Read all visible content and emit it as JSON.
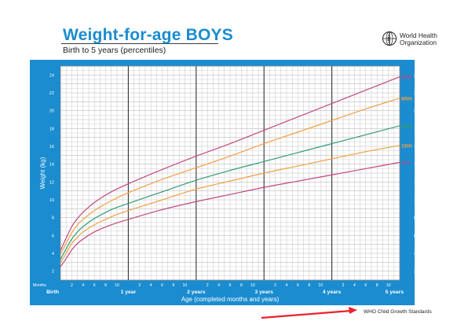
{
  "header": {
    "title": "Weight-for-age BOYS",
    "subtitle": "Birth to 5 years (percentiles)",
    "org_line1": "World Health",
    "org_line2": "Organization",
    "footer_note": "WHO Child Growth Standards"
  },
  "colors": {
    "frame": "#1a8ccf",
    "plot_bg": "#ffffff",
    "grid": "#bdbdbd",
    "year_line": "#333333",
    "p97": "#c1497e",
    "p85": "#f0a043",
    "p50": "#2f9e72",
    "p15": "#f0a043",
    "p3": "#c1497e",
    "arrow": "#e8232d"
  },
  "chart_data": {
    "type": "line",
    "title": "Weight-for-age BOYS",
    "subtitle": "Birth to 5 years (percentiles)",
    "xlabel": "Age (completed months and years)",
    "ylabel": "Weight (kg)",
    "xlim": [
      0,
      60
    ],
    "ylim": [
      1,
      25
    ],
    "y_ticks": [
      2,
      4,
      6,
      8,
      10,
      12,
      14,
      16,
      18,
      20,
      22,
      24
    ],
    "months_label": "Months",
    "x_month_ticks": [
      {
        "x": 2,
        "label": "2"
      },
      {
        "x": 4,
        "label": "4"
      },
      {
        "x": 6,
        "label": "6"
      },
      {
        "x": 8,
        "label": "8"
      },
      {
        "x": 10,
        "label": "10"
      },
      {
        "x": 14,
        "label": "2"
      },
      {
        "x": 16,
        "label": "4"
      },
      {
        "x": 18,
        "label": "6"
      },
      {
        "x": 20,
        "label": "8"
      },
      {
        "x": 22,
        "label": "10"
      },
      {
        "x": 26,
        "label": "2"
      },
      {
        "x": 28,
        "label": "4"
      },
      {
        "x": 30,
        "label": "6"
      },
      {
        "x": 32,
        "label": "8"
      },
      {
        "x": 34,
        "label": "10"
      },
      {
        "x": 38,
        "label": "2"
      },
      {
        "x": 40,
        "label": "4"
      },
      {
        "x": 42,
        "label": "6"
      },
      {
        "x": 44,
        "label": "8"
      },
      {
        "x": 46,
        "label": "10"
      },
      {
        "x": 50,
        "label": "2"
      },
      {
        "x": 52,
        "label": "4"
      },
      {
        "x": 54,
        "label": "6"
      },
      {
        "x": 56,
        "label": "8"
      },
      {
        "x": 58,
        "label": "10"
      }
    ],
    "x_year_ticks": [
      {
        "x": 0,
        "label": "Birth"
      },
      {
        "x": 12,
        "label": "1 year"
      },
      {
        "x": 24,
        "label": "2 years"
      },
      {
        "x": 36,
        "label": "3 years"
      },
      {
        "x": 48,
        "label": "4 years"
      },
      {
        "x": 60,
        "label": "5 years"
      }
    ],
    "grid": true,
    "x": [
      0,
      1,
      2,
      3,
      4,
      6,
      9,
      12,
      18,
      24,
      30,
      36,
      42,
      48,
      54,
      60
    ],
    "series": [
      {
        "name": "97th",
        "color_key": "p97",
        "values": [
          4.3,
          5.7,
          7.0,
          7.9,
          8.6,
          9.7,
          10.9,
          11.8,
          13.4,
          14.9,
          16.3,
          17.8,
          19.3,
          20.8,
          22.3,
          23.8
        ]
      },
      {
        "name": "85th",
        "color_key": "p85",
        "values": [
          3.9,
          5.1,
          6.3,
          7.2,
          7.8,
          8.8,
          9.9,
          10.8,
          12.3,
          13.6,
          14.9,
          16.3,
          17.6,
          18.9,
          20.2,
          21.4
        ]
      },
      {
        "name": "50th",
        "color_key": "p50",
        "values": [
          3.3,
          4.5,
          5.6,
          6.4,
          7.0,
          7.9,
          8.9,
          9.6,
          10.9,
          12.2,
          13.3,
          14.3,
          15.3,
          16.3,
          17.3,
          18.3
        ]
      },
      {
        "name": "15th",
        "color_key": "p15",
        "values": [
          2.9,
          4.0,
          5.1,
          5.8,
          6.4,
          7.2,
          8.1,
          8.8,
          10.0,
          11.2,
          12.1,
          13.0,
          13.8,
          14.6,
          15.4,
          16.1
        ]
      },
      {
        "name": "3rd",
        "color_key": "p3",
        "values": [
          2.5,
          3.4,
          4.4,
          5.1,
          5.6,
          6.4,
          7.2,
          7.8,
          8.9,
          9.8,
          10.6,
          11.4,
          12.1,
          12.8,
          13.5,
          14.2
        ]
      }
    ]
  }
}
